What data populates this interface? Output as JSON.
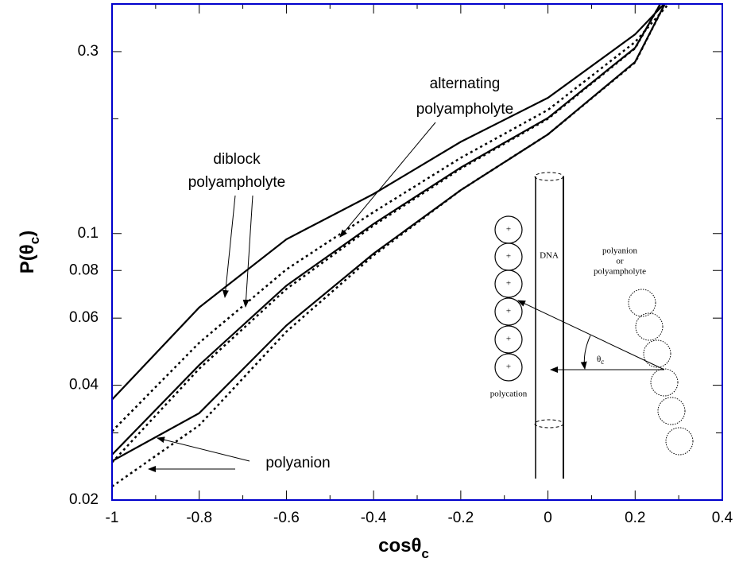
{
  "chart_data": {
    "type": "line",
    "yscale": "log",
    "xlim": [
      -1,
      0.4
    ],
    "ylim": [
      0.02,
      0.4
    ],
    "xticks": [
      -1,
      -0.8,
      -0.6,
      -0.4,
      -0.2,
      0,
      0.2,
      0.4
    ],
    "minor_xticks": [
      -0.9,
      -0.7,
      -0.5,
      -0.3,
      -0.1,
      0.1,
      0.3
    ],
    "yticks": [
      0.02,
      0.04,
      0.06,
      0.08,
      0.1,
      0.3
    ],
    "minor_yticks": [
      0.03,
      0.2
    ],
    "frame_color": "#0000cc",
    "xlabel": [
      "cosθ",
      "c"
    ],
    "ylabel": [
      "P(θ",
      "c",
      ")"
    ],
    "series": [
      {
        "color": "#000000",
        "dash": "solid",
        "x": [
          -1,
          -0.8,
          -0.6,
          -0.4,
          -0.2,
          0,
          0.2,
          0.27
        ],
        "values": [
          0.0367,
          0.064,
          0.0966,
          0.127,
          0.174,
          0.227,
          0.333,
          0.404
        ]
      },
      {
        "color": "#000000",
        "dash": "dotted",
        "x": [
          -1,
          -0.8,
          -0.6,
          -0.4,
          -0.2,
          0,
          0.2,
          0.28
        ],
        "values": [
          0.0303,
          0.0517,
          0.0805,
          0.1138,
          0.158,
          0.211,
          0.318,
          0.404
        ]
      },
      {
        "color": "#000000",
        "dash": "solid",
        "x": [
          -1,
          -0.8,
          -0.6,
          -0.4,
          -0.2,
          0,
          0.2,
          0.26
        ],
        "values": [
          0.0263,
          0.0452,
          0.073,
          0.106,
          0.149,
          0.201,
          0.307,
          0.404
        ]
      },
      {
        "color": "#000000",
        "dash": "dotted",
        "x": [
          -1,
          -0.8,
          -0.6,
          -0.4,
          -0.2,
          0,
          0.2,
          0.26
        ],
        "values": [
          0.0251,
          0.0442,
          0.0715,
          0.105,
          0.148,
          0.2,
          0.306,
          0.404
        ]
      },
      {
        "color": "#000000",
        "dash": "solid",
        "x": [
          -1,
          -0.8,
          -0.6,
          -0.4,
          -0.2,
          0,
          0.2,
          0.27
        ],
        "values": [
          0.0253,
          0.0338,
          0.0574,
          0.0886,
          0.13,
          0.182,
          0.282,
          0.404
        ]
      },
      {
        "color": "#000000",
        "dash": "dotted",
        "x": [
          -1,
          -0.8,
          -0.6,
          -0.4,
          -0.2,
          0,
          0.2,
          0.27
        ],
        "values": [
          0.0217,
          0.0314,
          0.0553,
          0.0876,
          0.13,
          0.182,
          0.281,
          0.404
        ]
      }
    ],
    "annotations": [
      {
        "lines": [
          "alternating",
          "polyampholyte"
        ]
      },
      {
        "lines": [
          "diblock",
          "polyampholyte"
        ]
      },
      {
        "lines": [
          "polyanion"
        ]
      }
    ],
    "inset": {
      "dna": "DNA",
      "polycation": "polycation",
      "partner": [
        "polyanion",
        "or",
        "polyampholyte"
      ],
      "angle": [
        "θ",
        "c"
      ],
      "charge": "+"
    }
  }
}
